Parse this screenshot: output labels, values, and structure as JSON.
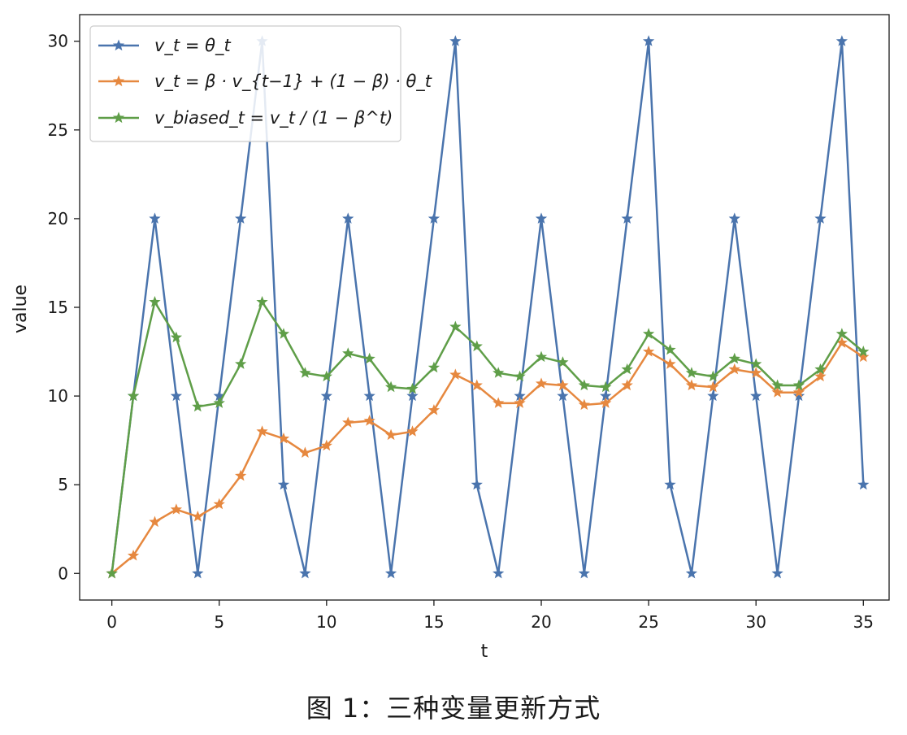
{
  "chart_data": {
    "type": "line",
    "xlabel": "t",
    "ylabel": "value",
    "xlim": [
      -1.5,
      36.2
    ],
    "ylim": [
      -1.5,
      31.5
    ],
    "xticks": [
      0,
      5,
      10,
      15,
      20,
      25,
      30,
      35
    ],
    "yticks": [
      0,
      5,
      10,
      15,
      20,
      25,
      30
    ],
    "grid": false,
    "legend_position": "top-left",
    "marker": "star",
    "x": [
      0,
      1,
      2,
      3,
      4,
      5,
      6,
      7,
      8,
      9,
      10,
      11,
      12,
      13,
      14,
      15,
      16,
      17,
      18,
      19,
      20,
      21,
      22,
      23,
      24,
      25,
      26,
      27,
      28,
      29,
      30,
      31,
      32,
      33,
      34,
      35
    ],
    "series": [
      {
        "name": "v_t = θ_t",
        "color": "#4a74ad",
        "values": [
          0,
          10,
          20,
          10,
          0,
          10,
          20,
          30,
          5,
          0,
          10,
          20,
          10,
          0,
          10,
          20,
          30,
          5,
          0,
          10,
          20,
          10,
          0,
          10,
          20,
          30,
          5,
          0,
          10,
          20,
          10,
          0,
          10,
          20,
          30,
          5
        ]
      },
      {
        "name": "v_t = β · v_{t−1} + (1 − β) · θ_t",
        "color": "#e6883f",
        "values": [
          0,
          1.0,
          2.9,
          3.6,
          3.2,
          3.9,
          5.5,
          8.0,
          7.6,
          6.8,
          7.2,
          8.5,
          8.6,
          7.8,
          8.0,
          9.2,
          11.2,
          10.6,
          9.6,
          9.6,
          10.7,
          10.6,
          9.5,
          9.6,
          10.6,
          12.5,
          11.8,
          10.6,
          10.5,
          11.5,
          11.3,
          10.2,
          10.2,
          11.1,
          13.0,
          12.2
        ]
      },
      {
        "name": "v_biased_t = v_t / (1 − β^t)",
        "color": "#5f9e48",
        "values": [
          0,
          10.0,
          15.3,
          13.3,
          9.4,
          9.6,
          11.8,
          15.3,
          13.5,
          11.3,
          11.1,
          12.4,
          12.1,
          10.5,
          10.4,
          11.6,
          13.9,
          12.8,
          11.3,
          11.1,
          12.2,
          11.9,
          10.6,
          10.5,
          11.5,
          13.5,
          12.6,
          11.3,
          11.1,
          12.1,
          11.8,
          10.6,
          10.6,
          11.5,
          13.5,
          12.5
        ]
      }
    ]
  },
  "caption": "图 1：三种变量更新方式"
}
